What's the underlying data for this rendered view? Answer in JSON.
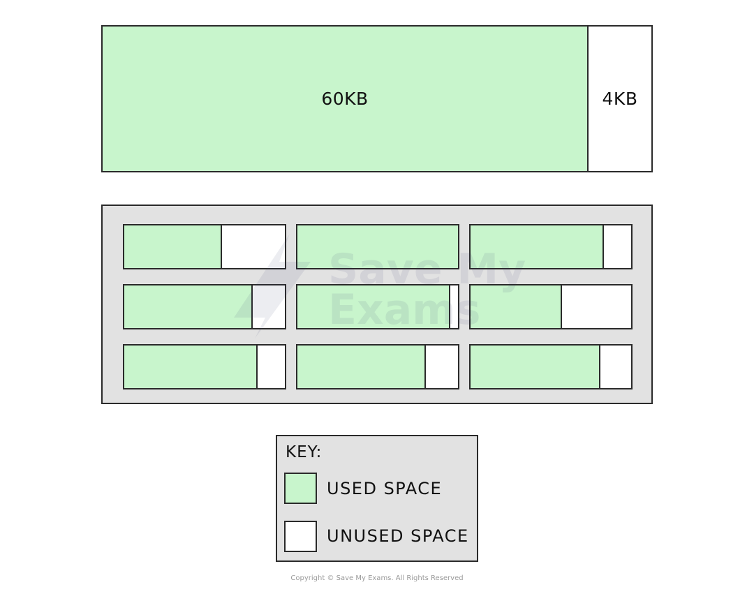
{
  "diagram": {
    "top_block": {
      "used_label": "60KB",
      "unused_label": "4KB",
      "used_fraction": 0.9375
    },
    "grid": {
      "rows": 3,
      "cols": 3,
      "cells_used_fraction": [
        [
          0.61,
          1.0,
          0.83
        ],
        [
          0.8,
          0.95,
          0.57
        ],
        [
          0.83,
          0.8,
          0.81
        ]
      ]
    },
    "key": {
      "title": "KEY:",
      "items": [
        {
          "label": "USED SPACE",
          "color": "#c8f5cc"
        },
        {
          "label": "UNUSED SPACE",
          "color": "#ffffff"
        }
      ]
    },
    "watermark": {
      "line1": "Save My",
      "line2": "Exams"
    },
    "copyright": "Copyright © Save My Exams. All Rights Reserved"
  }
}
